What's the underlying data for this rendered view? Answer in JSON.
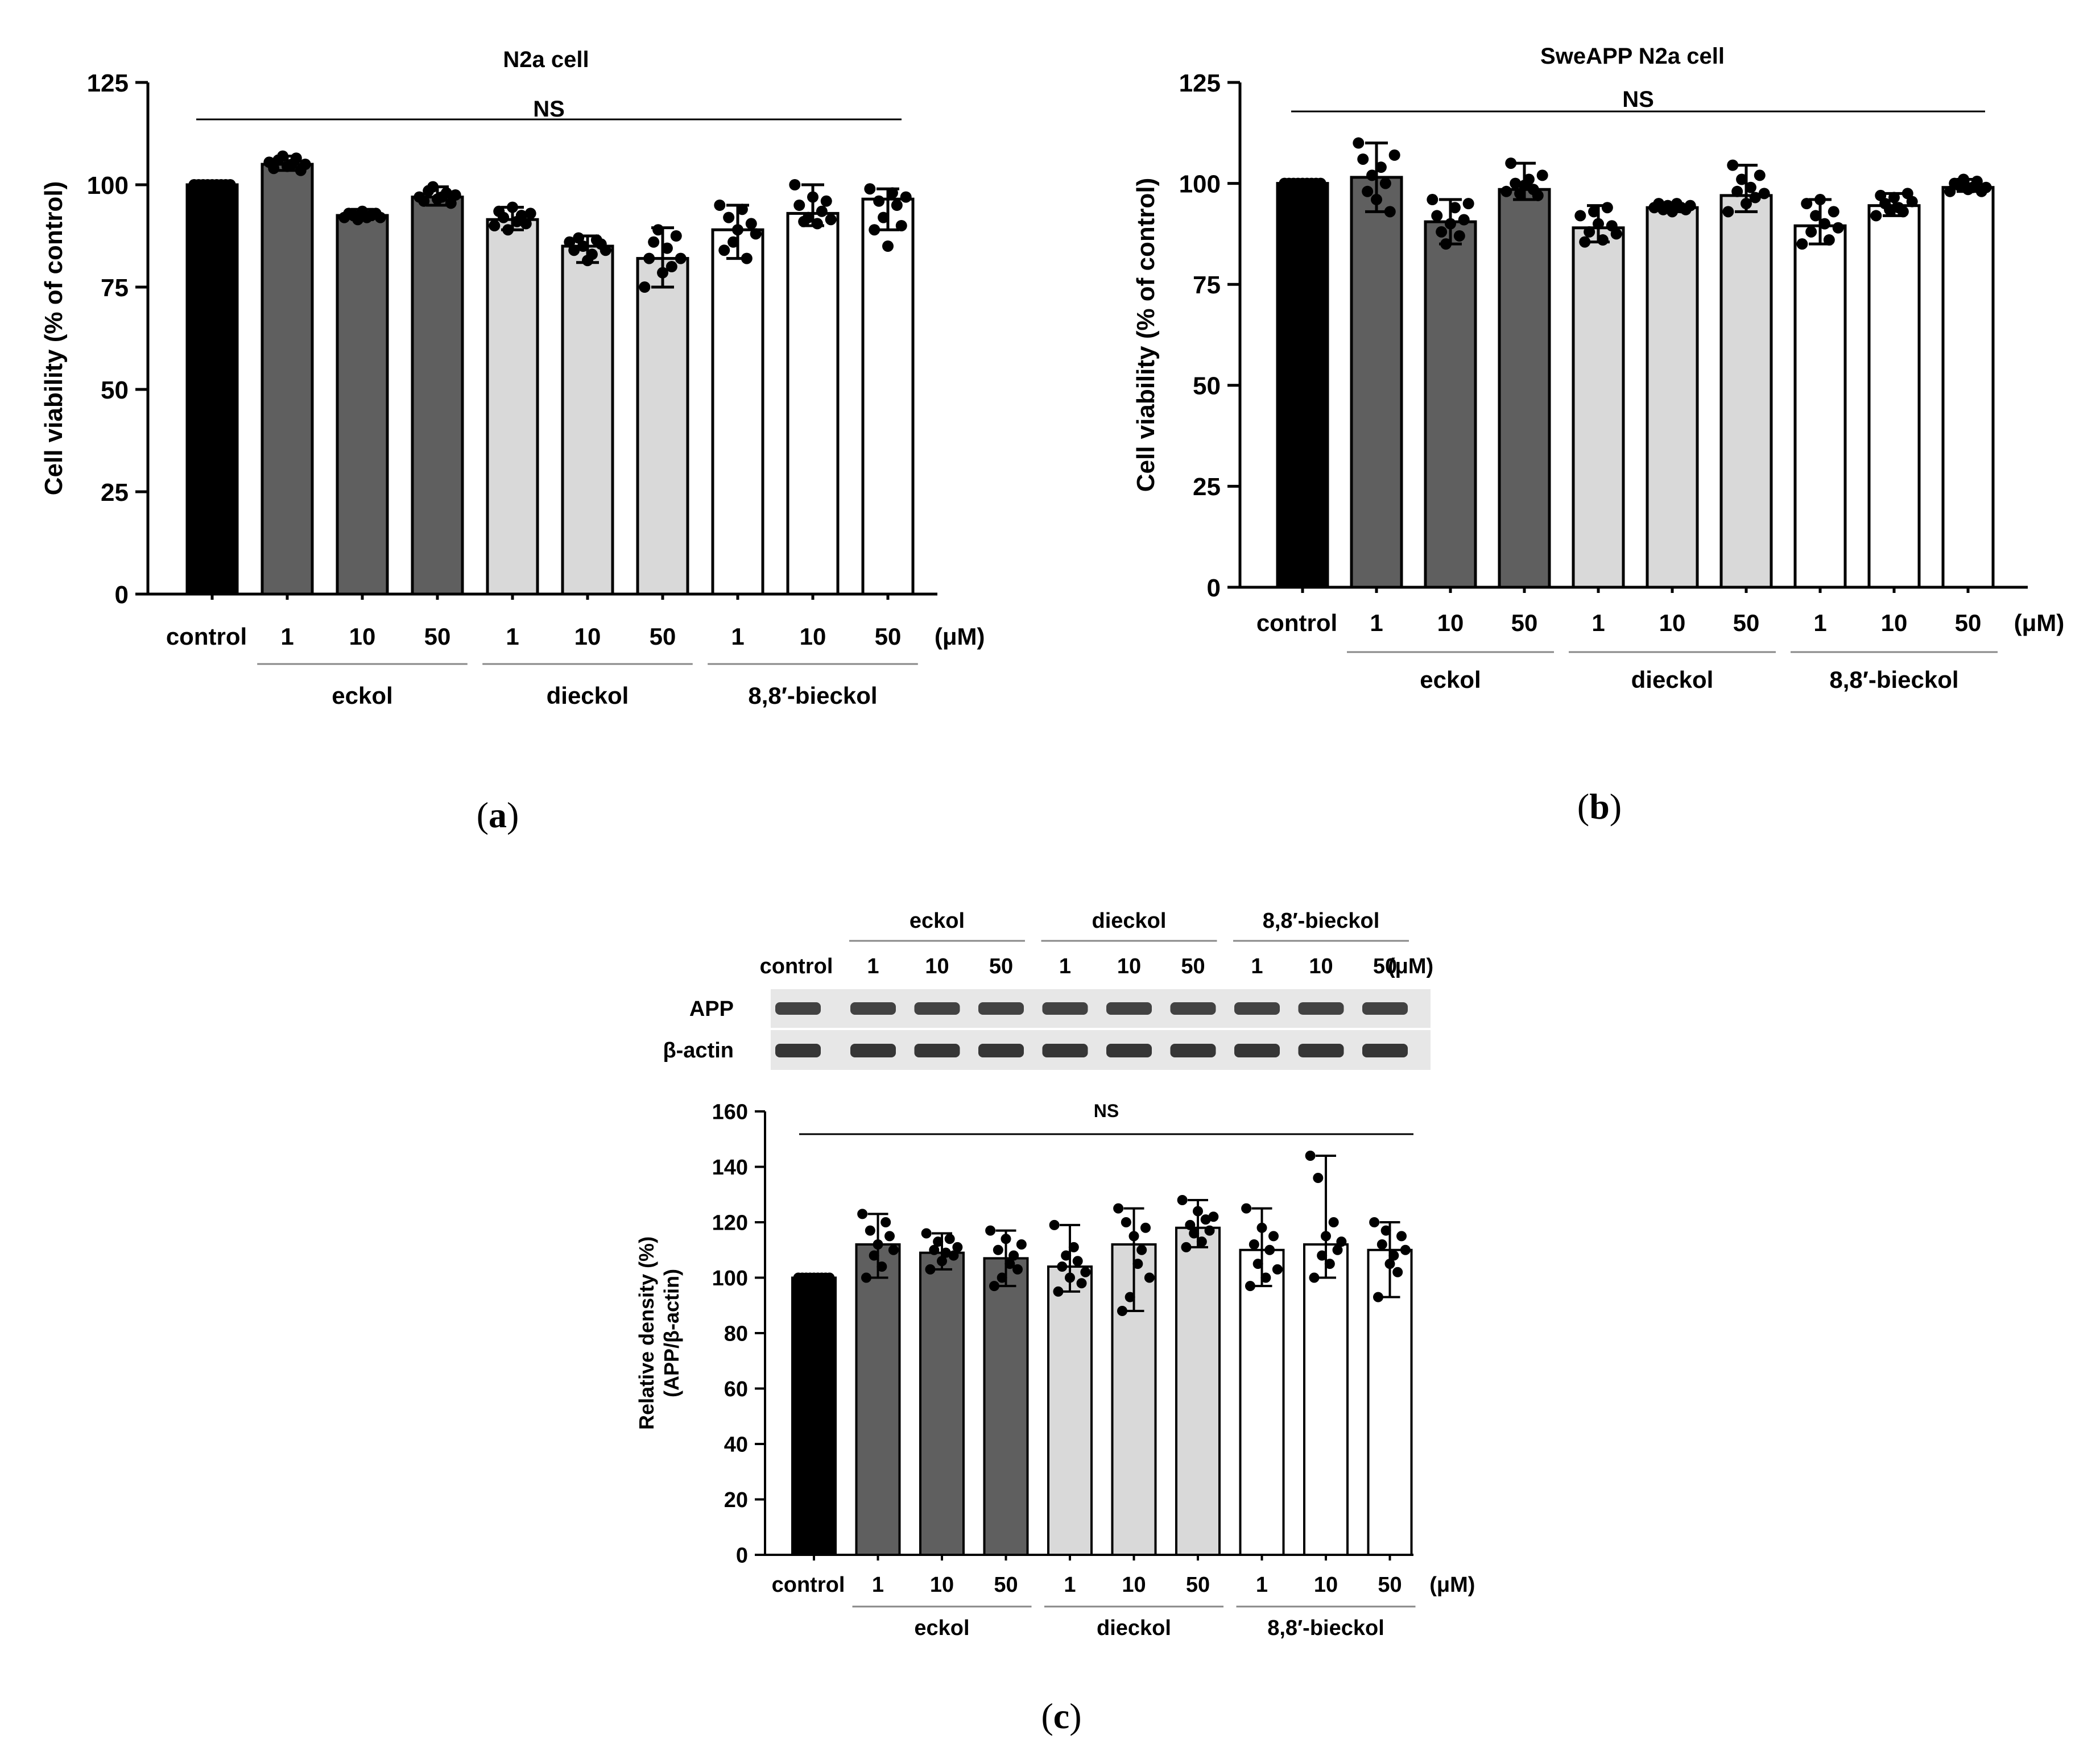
{
  "colors": {
    "control": "#000000",
    "eckol": "#5f5f5f",
    "dieckol": "#d9d9d9",
    "bieckol": "#ffffff",
    "axis": "#000000"
  },
  "chart_data": [
    {
      "id": "a",
      "type": "bar",
      "title": "N2a cell",
      "ylabel": "Cell viability (% of control)",
      "ylim": [
        0,
        125
      ],
      "yticks": [
        0,
        25,
        50,
        75,
        100,
        125
      ],
      "significance": "NS",
      "categories": [
        "control",
        "1",
        "10",
        "50",
        "1",
        "10",
        "50",
        "1",
        "10",
        "50"
      ],
      "unit": "(μM)",
      "groups": [
        {
          "label": "eckol",
          "from": 1,
          "to": 3
        },
        {
          "label": "dieckol",
          "from": 4,
          "to": 6
        },
        {
          "label": "8,8′-bieckol",
          "from": 7,
          "to": 9
        }
      ],
      "bar_fill": [
        "control",
        "eckol",
        "eckol",
        "eckol",
        "dieckol",
        "dieckol",
        "dieckol",
        "bieckol",
        "bieckol",
        "bieckol"
      ],
      "values": [
        100,
        105,
        92.5,
        97,
        91.5,
        85,
        82,
        89,
        93,
        96.5
      ],
      "err_low": [
        100,
        103.5,
        91.5,
        95,
        89,
        81,
        75,
        82,
        90,
        89
      ],
      "err_high": [
        100,
        107,
        94,
        99.5,
        94.5,
        87.5,
        89.5,
        95,
        100,
        99
      ],
      "points": [
        [
          100,
          100,
          100,
          100,
          100,
          100,
          100,
          100,
          100
        ],
        [
          105.5,
          104,
          106,
          107,
          104.5,
          105,
          106.5,
          103.5,
          105
        ],
        [
          92,
          93,
          92.5,
          91.5,
          93.5,
          92,
          92.5,
          93,
          92
        ],
        [
          97,
          96,
          98.5,
          99.5,
          96.5,
          97,
          98,
          95.5,
          97.5
        ],
        [
          90,
          93.5,
          92,
          89,
          94.5,
          91,
          92.5,
          90.5,
          93
        ],
        [
          86,
          84,
          87,
          85,
          81.5,
          83,
          86.5,
          85.5,
          84
        ],
        [
          75,
          82,
          86,
          89,
          78.5,
          84.5,
          80,
          87.5,
          82
        ],
        [
          95,
          84,
          92,
          86,
          89,
          94,
          82,
          90.5,
          88
        ],
        [
          100,
          95,
          91,
          92,
          97,
          90.5,
          93.5,
          96,
          91.5
        ],
        [
          99,
          89,
          96,
          92,
          85,
          98,
          95,
          90,
          97
        ]
      ],
      "panel_label": "a"
    },
    {
      "id": "b",
      "type": "bar",
      "title": "SweAPP N2a cell",
      "ylabel": "Cell viability (% of control)",
      "ylim": [
        0,
        125
      ],
      "yticks": [
        0,
        25,
        50,
        75,
        100,
        125
      ],
      "significance": "NS",
      "categories": [
        "control",
        "1",
        "10",
        "50",
        "1",
        "10",
        "50",
        "1",
        "10",
        "50"
      ],
      "unit": "(μM)",
      "groups": [
        {
          "label": "eckol",
          "from": 1,
          "to": 3
        },
        {
          "label": "dieckol",
          "from": 4,
          "to": 6
        },
        {
          "label": "8,8′-bieckol",
          "from": 7,
          "to": 9
        }
      ],
      "bar_fill": [
        "control",
        "eckol",
        "eckol",
        "eckol",
        "dieckol",
        "dieckol",
        "dieckol",
        "bieckol",
        "bieckol",
        "bieckol"
      ],
      "values": [
        100,
        101.5,
        90.5,
        98.5,
        89,
        94,
        97,
        89.5,
        94.5,
        99
      ],
      "err_low": [
        100,
        93,
        85,
        96,
        85.5,
        93,
        93,
        85,
        92,
        98
      ],
      "err_high": [
        100,
        110,
        96,
        105,
        94.5,
        95,
        104.5,
        96,
        97.5,
        101
      ],
      "points": [
        [
          100,
          100,
          100,
          100,
          100,
          100,
          100,
          100,
          100
        ],
        [
          110,
          106,
          98,
          102,
          96,
          104,
          100,
          93,
          107
        ],
        [
          96,
          92,
          88,
          85,
          90,
          94,
          87,
          91,
          95
        ],
        [
          98,
          105,
          100,
          97.5,
          99.5,
          101,
          98.5,
          97,
          102
        ],
        [
          92,
          85.5,
          88,
          93,
          90,
          86,
          94,
          89.5,
          87.5
        ],
        [
          94,
          95,
          93.5,
          94.5,
          93,
          95,
          94,
          93.5,
          94.5
        ],
        [
          93,
          104.5,
          98,
          101,
          95,
          99,
          96.5,
          102,
          97.5
        ],
        [
          85,
          95,
          88,
          92,
          96,
          90,
          86,
          93,
          89
        ],
        [
          92,
          97,
          95,
          93.5,
          96.5,
          94,
          93,
          97.5,
          95.5
        ],
        [
          98,
          100,
          99.5,
          101,
          98.5,
          99,
          100.5,
          98,
          99
        ]
      ],
      "panel_label": "b"
    },
    {
      "id": "c",
      "type": "bar",
      "title": "",
      "ylabel": "Relative density (%)",
      "ylabel2": "(APP/β-actin)",
      "ylim": [
        0,
        160
      ],
      "yticks": [
        0,
        20,
        40,
        60,
        80,
        100,
        120,
        140,
        160
      ],
      "significance": "NS",
      "categories": [
        "control",
        "1",
        "10",
        "50",
        "1",
        "10",
        "50",
        "1",
        "10",
        "50"
      ],
      "unit": "(μM)",
      "groups": [
        {
          "label": "eckol",
          "from": 1,
          "to": 3
        },
        {
          "label": "dieckol",
          "from": 4,
          "to": 6
        },
        {
          "label": "8,8′-bieckol",
          "from": 7,
          "to": 9
        }
      ],
      "bar_fill": [
        "control",
        "eckol",
        "eckol",
        "eckol",
        "dieckol",
        "dieckol",
        "dieckol",
        "bieckol",
        "bieckol",
        "bieckol"
      ],
      "values": [
        100,
        112,
        109,
        107,
        104,
        112,
        118,
        110,
        112,
        110
      ],
      "err_low": [
        100,
        100,
        103,
        97,
        95,
        88,
        111,
        97,
        100,
        93
      ],
      "err_high": [
        100,
        123,
        116,
        117,
        119,
        125,
        128,
        125,
        144,
        120
      ],
      "points": [
        [
          100,
          100,
          100,
          100,
          100,
          100,
          100,
          100,
          100
        ],
        [
          123,
          100,
          117,
          108,
          112,
          104,
          120,
          115,
          110
        ],
        [
          116,
          103,
          110,
          113,
          106,
          109,
          114,
          108,
          111
        ],
        [
          117,
          97,
          110,
          100,
          114,
          105,
          108,
          103,
          112
        ],
        [
          119,
          95,
          104,
          108,
          100,
          111,
          106,
          98,
          102
        ],
        [
          125,
          88,
          120,
          93,
          115,
          105,
          110,
          118,
          100
        ],
        [
          128,
          111,
          119,
          116,
          124,
          113,
          121,
          117,
          122
        ],
        [
          125,
          97,
          112,
          105,
          118,
          100,
          110,
          115,
          103
        ],
        [
          144,
          100,
          136,
          108,
          115,
          105,
          120,
          110,
          113
        ],
        [
          120,
          93,
          112,
          117,
          105,
          108,
          102,
          115,
          110
        ]
      ],
      "panel_label": "c"
    }
  ],
  "blot": {
    "header_groups": [
      "eckol",
      "dieckol",
      "8,8′-bieckol"
    ],
    "lanes": [
      "control",
      "1",
      "10",
      "50",
      "1",
      "10",
      "50",
      "1",
      "10",
      "50"
    ],
    "unit": "(μM)",
    "rows": [
      "APP",
      "β-actin"
    ]
  }
}
